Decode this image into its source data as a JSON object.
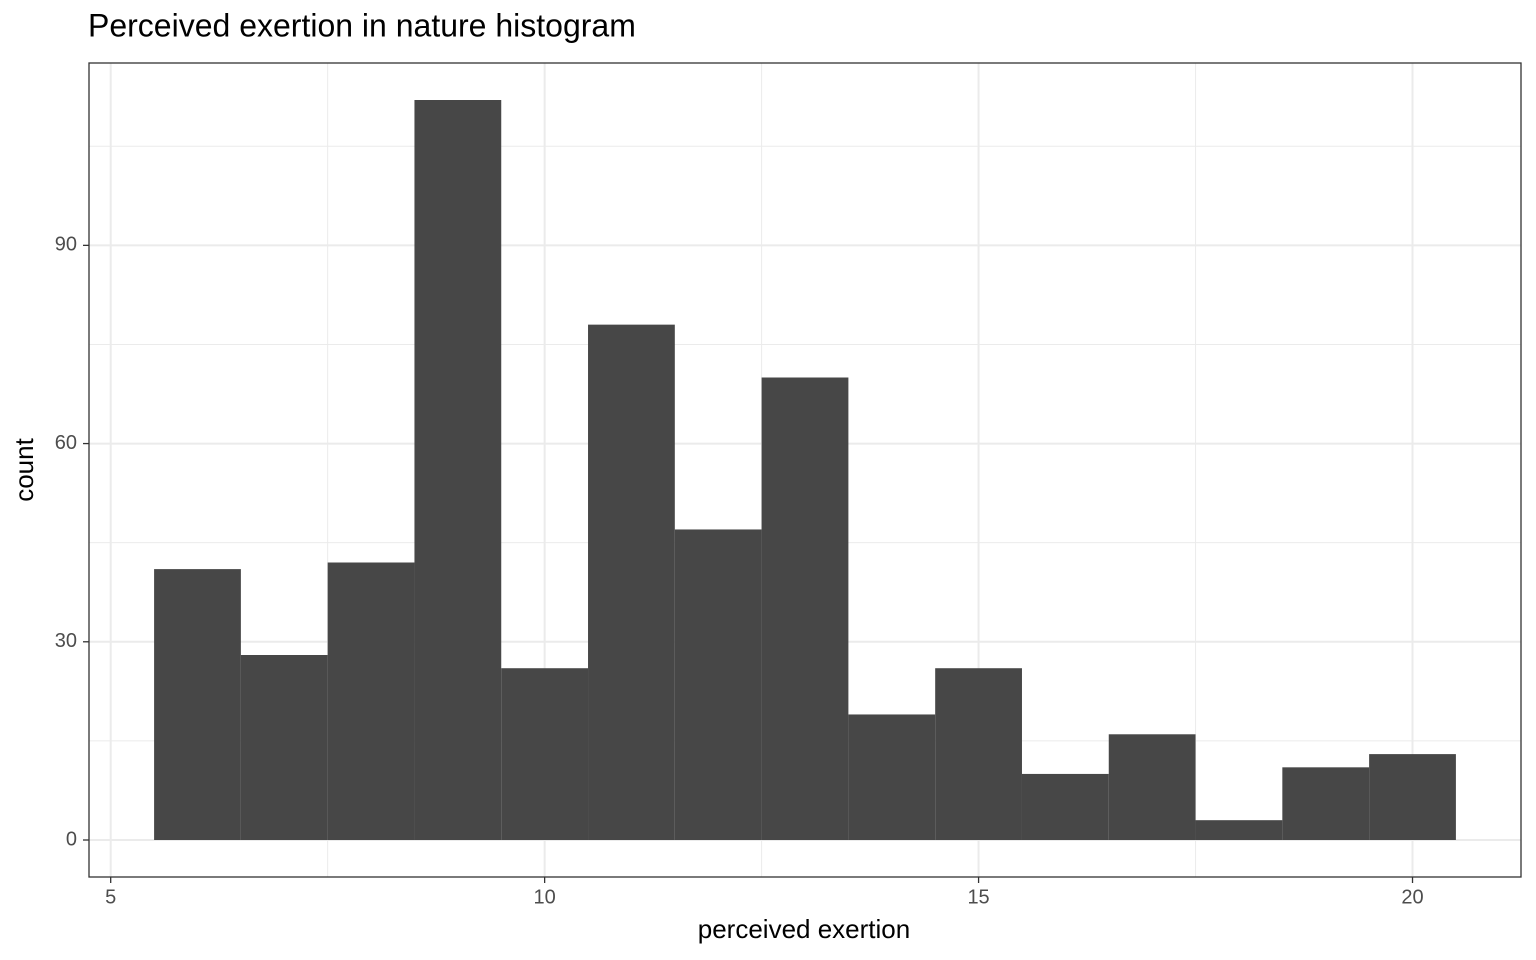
{
  "chart_data": {
    "type": "histogram",
    "title": "Perceived exertion in nature histogram",
    "x_label": "perceived exertion",
    "y_label": "count",
    "bins": [
      5.5,
      6.5,
      7.5,
      8.5,
      9.5,
      10.5,
      11.5,
      12.5,
      13.5,
      14.5,
      15.5,
      16.5,
      17.5,
      18.5,
      19.5,
      20.5
    ],
    "values": [
      41,
      28,
      42,
      112,
      26,
      78,
      47,
      70,
      19,
      26,
      10,
      16,
      3,
      11,
      13
    ],
    "color": "#474747",
    "xlim": [
      4.75,
      21.25
    ],
    "xticks": [
      5,
      10,
      15,
      20
    ],
    "ylim": [
      -5.6,
      117.6
    ],
    "yticks": [
      0,
      30,
      60,
      90
    ],
    "grid": true
  }
}
